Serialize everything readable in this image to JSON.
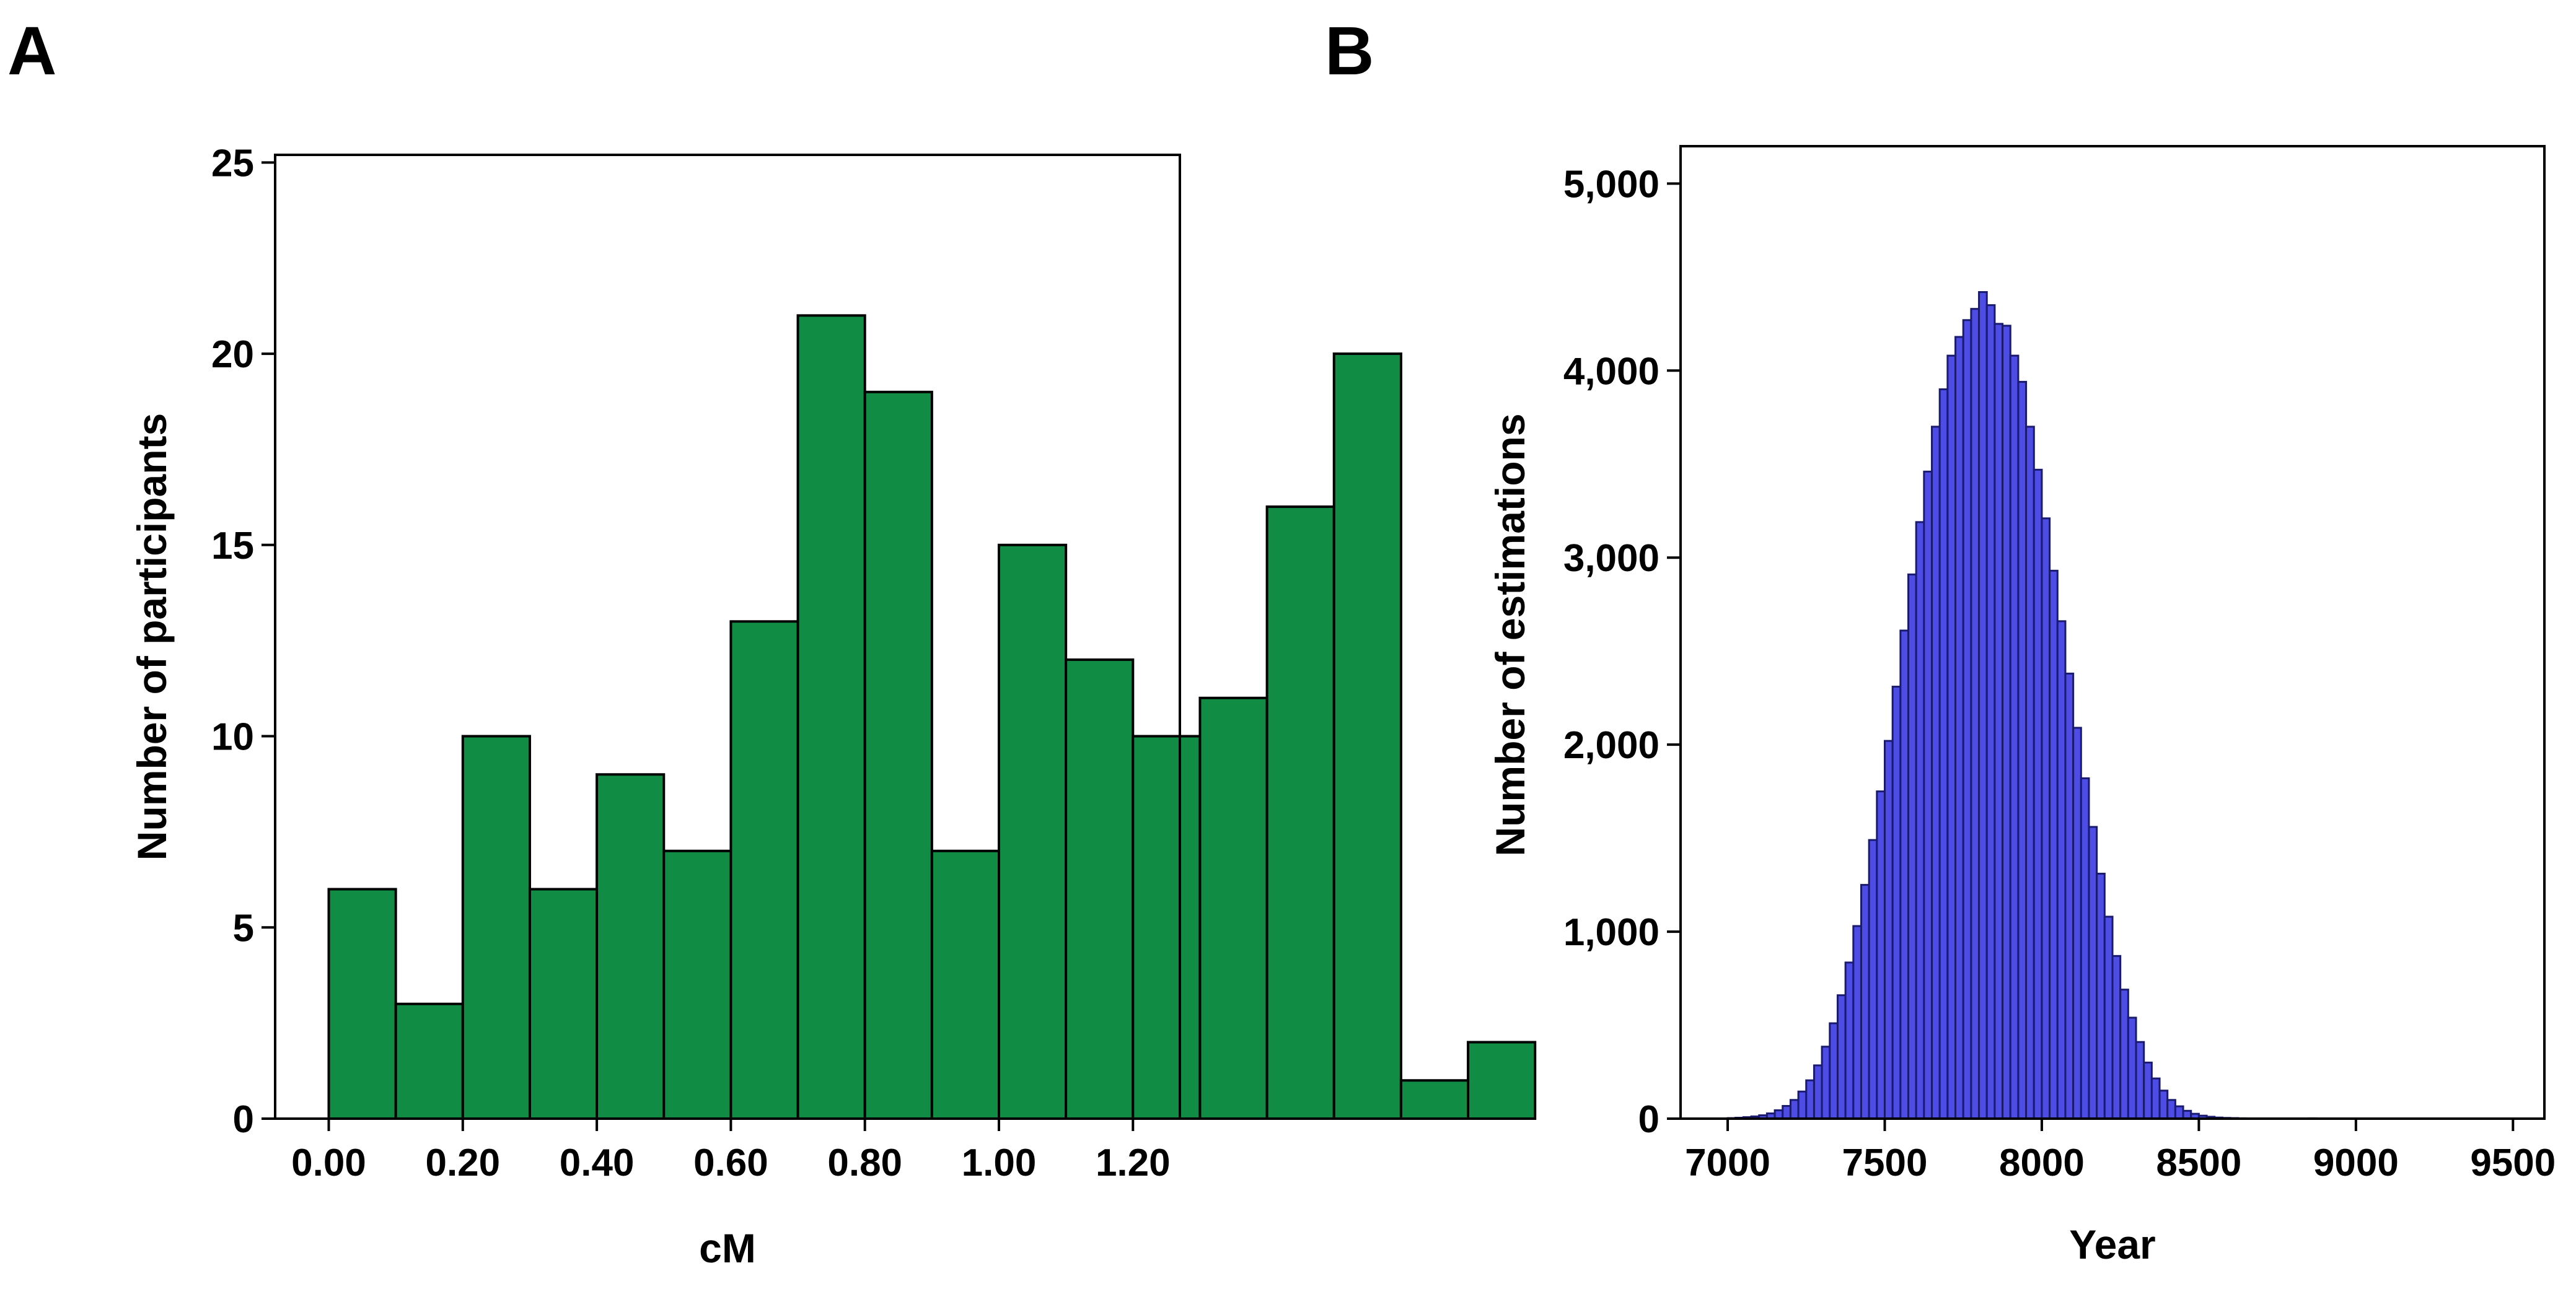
{
  "panels": {
    "a": {
      "letter": "A"
    },
    "b": {
      "letter": "B"
    }
  },
  "chart_data": [
    {
      "type": "bar",
      "panel": "A",
      "title": "",
      "xlabel": "cM",
      "ylabel": "Number of participants",
      "xlim": [
        -0.08,
        1.27
      ],
      "ylim": [
        0,
        25.2
      ],
      "xticks": [
        0.0,
        0.2,
        0.4,
        0.6,
        0.8,
        1.0,
        1.2
      ],
      "xtick_labels": [
        "0.00",
        "0.20",
        "0.40",
        "0.60",
        "0.80",
        "1.00",
        "1.20"
      ],
      "yticks": [
        0,
        5,
        10,
        15,
        20,
        25
      ],
      "ytick_labels": [
        "0",
        "5",
        "10",
        "15",
        "20",
        "25"
      ],
      "bin_start": 0.0,
      "bin_width": 0.1,
      "values": [
        6,
        3,
        10,
        6,
        9,
        7,
        13,
        21,
        19,
        7,
        15,
        12,
        10,
        11,
        16,
        20,
        1,
        2
      ],
      "color": "#118c45",
      "grid": false
    },
    {
      "type": "bar",
      "panel": "B",
      "title": "",
      "xlabel": "Year",
      "ylabel": "Number of estimations",
      "xlim": [
        6850,
        9600
      ],
      "ylim": [
        0,
        5200
      ],
      "xticks": [
        7000,
        7500,
        8000,
        8500,
        9000,
        9500
      ],
      "xtick_labels": [
        "7000",
        "7500",
        "8000",
        "8500",
        "9000",
        "9500"
      ],
      "yticks": [
        0,
        1000,
        2000,
        3000,
        4000,
        5000
      ],
      "ytick_labels": [
        "0",
        "1,000",
        "2,000",
        "3,000",
        "4,000",
        "5,000"
      ],
      "bin_start": 7000,
      "bin_width": 25,
      "values": [
        3,
        5,
        8,
        12,
        18,
        28,
        45,
        68,
        100,
        145,
        205,
        285,
        385,
        510,
        660,
        835,
        1030,
        1250,
        1490,
        1750,
        2020,
        2310,
        2610,
        2910,
        3190,
        3460,
        3700,
        3900,
        4080,
        4180,
        4270,
        4330,
        4420,
        4350,
        4250,
        4240,
        4080,
        3940,
        3700,
        3470,
        3210,
        2930,
        2660,
        2380,
        2090,
        1820,
        1560,
        1310,
        1080,
        870,
        690,
        540,
        410,
        300,
        215,
        150,
        100,
        66,
        42,
        26,
        16,
        10,
        6,
        4,
        3,
        2,
        1,
        1,
        1,
        0,
        0,
        0,
        0,
        0,
        2,
        0,
        0,
        0,
        0,
        0
      ],
      "color": "#4d4de6",
      "grid": false
    }
  ]
}
